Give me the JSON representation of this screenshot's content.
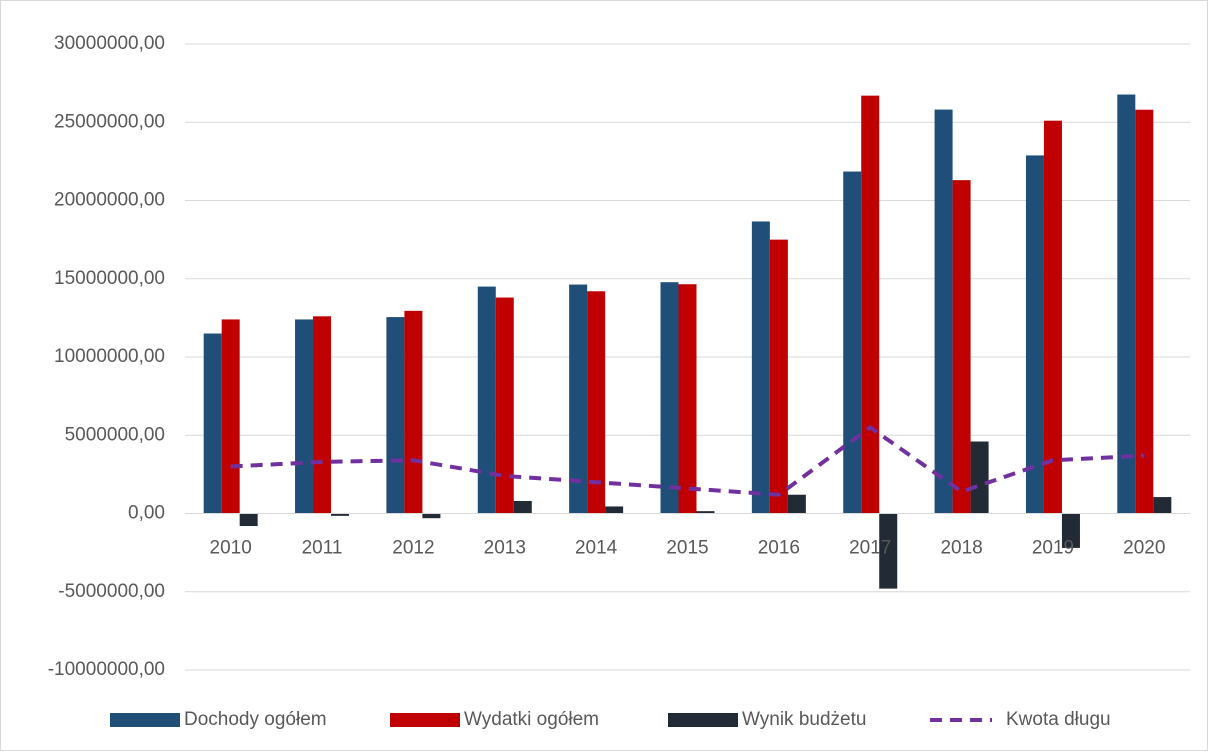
{
  "chart_data": {
    "type": "bar",
    "categories": [
      "2010",
      "2011",
      "2012",
      "2013",
      "2014",
      "2015",
      "2016",
      "2017",
      "2018",
      "2019",
      "2020"
    ],
    "series": [
      {
        "name": "Dochody ogółem",
        "color": "#1f4e79",
        "values": [
          11500000,
          12400000,
          12550000,
          14500000,
          14630000,
          14780000,
          18660000,
          21850000,
          25810000,
          22880000,
          26770000
        ]
      },
      {
        "name": "Wydatki ogółem",
        "color": "#c00000",
        "values": [
          12400000,
          12600000,
          12950000,
          13800000,
          14200000,
          14650000,
          17500000,
          26700000,
          21300000,
          25100000,
          25800000
        ]
      },
      {
        "name": "Wynik budżetu",
        "color": "#222a35",
        "values": [
          -800000,
          -150000,
          -300000,
          800000,
          450000,
          150000,
          1200000,
          -4800000,
          4600000,
          -2200000,
          1050000
        ]
      },
      {
        "name": "Kwota długu",
        "color": "#7030a0",
        "type": "line",
        "dashed": true,
        "values": [
          3000000,
          3300000,
          3400000,
          2400000,
          2000000,
          1600000,
          1200000,
          5500000,
          1400000,
          3400000,
          3700000
        ]
      }
    ],
    "ylim": [
      -10000000,
      30000000
    ],
    "yticks": [
      {
        "value": -10000000,
        "label": "-10000000,00"
      },
      {
        "value": -5000000,
        "label": "-5000000,00"
      },
      {
        "value": 0,
        "label": "0,00"
      },
      {
        "value": 5000000,
        "label": "5000000,00"
      },
      {
        "value": 10000000,
        "label": "10000000,00"
      },
      {
        "value": 15000000,
        "label": "15000000,00"
      },
      {
        "value": 20000000,
        "label": "20000000,00"
      },
      {
        "value": 25000000,
        "label": "25000000,00"
      },
      {
        "value": 30000000,
        "label": "30000000,00"
      }
    ],
    "grid": true,
    "legend": "bottom"
  }
}
